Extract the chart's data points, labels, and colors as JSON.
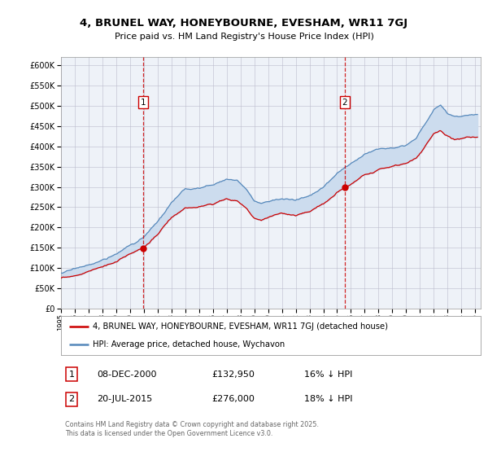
{
  "title": "4, BRUNEL WAY, HONEYBOURNE, EVESHAM, WR11 7GJ",
  "subtitle": "Price paid vs. HM Land Registry's House Price Index (HPI)",
  "legend_label_red": "4, BRUNEL WAY, HONEYBOURNE, EVESHAM, WR11 7GJ (detached house)",
  "legend_label_blue": "HPI: Average price, detached house, Wychavon",
  "footer": "Contains HM Land Registry data © Crown copyright and database right 2025.\nThis data is licensed under the Open Government Licence v3.0.",
  "purchases": [
    {
      "label": "1",
      "date": "08-DEC-2000",
      "price": 132950,
      "pct": "16% ↓ HPI"
    },
    {
      "label": "2",
      "date": "20-JUL-2015",
      "price": 276000,
      "pct": "18% ↓ HPI"
    }
  ],
  "purchase_dates": [
    2000.94,
    2015.55
  ],
  "purchase_prices": [
    132950,
    276000
  ],
  "ylim": [
    0,
    620000
  ],
  "yticks": [
    0,
    50000,
    100000,
    150000,
    200000,
    250000,
    300000,
    350000,
    400000,
    450000,
    500000,
    550000,
    600000
  ],
  "color_red": "#cc0000",
  "color_blue": "#5588bb",
  "color_fill_blue": "#ccdcee",
  "color_dashed": "#cc0000",
  "plot_bg": "#eef2f8"
}
